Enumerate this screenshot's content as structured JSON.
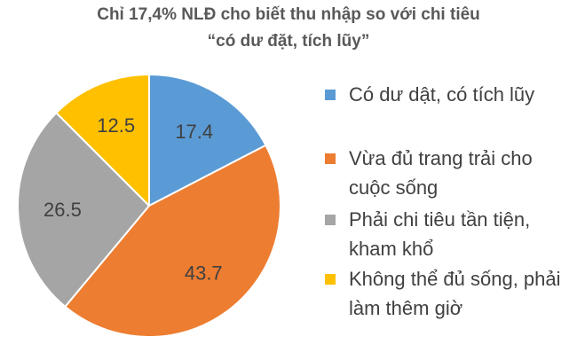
{
  "title": {
    "line1": "Chỉ 17,4% NLĐ cho biết thu nhập so với chi tiêu",
    "line2": "“có dư đặt, tích lũy”"
  },
  "chart_data": {
    "type": "pie",
    "title": "Chỉ 17,4% NLĐ cho biết thu nhập so với chi tiêu “có dư đặt, tích lũy”",
    "start_angle_deg": 0,
    "direction": "clockwise",
    "legend_position": "right",
    "slices": [
      {
        "label": "Có dư dật, có tích lũy",
        "value": 17.4,
        "value_label": "17.4",
        "color": "#5B9BD5"
      },
      {
        "label": "Vừa đủ trang trải cho cuộc sống",
        "value": 43.7,
        "value_label": "43.7",
        "color": "#ED7D31"
      },
      {
        "label": "Phải chi tiêu tần tiện, kham khổ",
        "value": 26.5,
        "value_label": "26.5",
        "color": "#A5A5A5"
      },
      {
        "label": "Không thể đủ sống, phải làm thêm giờ",
        "value": 12.5,
        "value_label": "12.5",
        "color": "#FFC000"
      }
    ]
  },
  "legend": {
    "items": [
      {
        "line1": "Có dư dật, có tích lũy",
        "line2": ""
      },
      {
        "line1": "Vừa đủ trang trải cho",
        "line2": "cuộc sống"
      },
      {
        "line1": "Phải chi tiêu tần tiện,",
        "line2": "kham khổ"
      },
      {
        "line1": "Không thể đủ sống, phải",
        "line2": "làm thêm giờ"
      }
    ]
  }
}
